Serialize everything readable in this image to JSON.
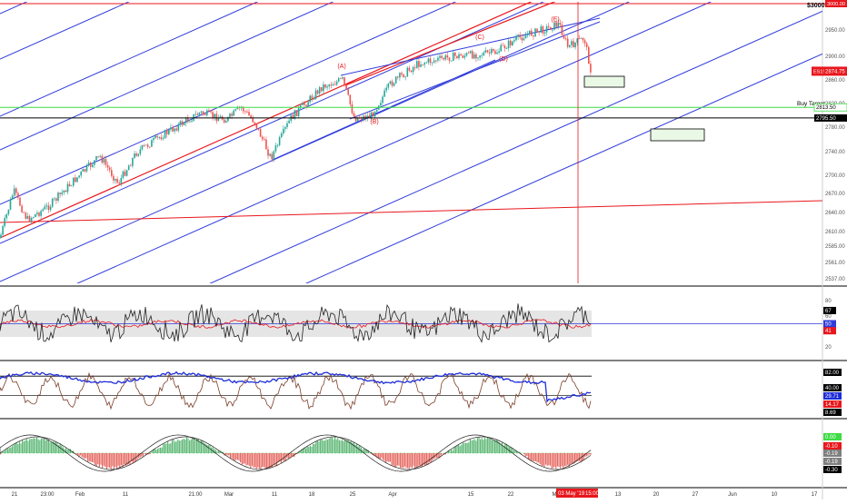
{
  "chart_data": {
    "type": "line",
    "colors": {
      "background": "#ffffff",
      "up_candle": "#26a69a",
      "down_candle": "#ef5350",
      "channel_blue": "#2f3bdb",
      "channel_red": "#e8171c",
      "support_green": "#3ddc44",
      "rsi_band": "#e5e5e5",
      "stoch_k": "#1d2cd8",
      "stoch_d": "#7b3f2a",
      "macd_up": "#3aa757",
      "macd_down": "#e0473f",
      "price_tag": "#e8171c"
    },
    "main_panel": {
      "corner_label": "$3000!",
      "y_ticks": [
        "2950.00",
        "2900.00",
        "2860.00",
        "2820.00",
        "2780.00",
        "2740.00",
        "2700.00",
        "2670.00",
        "2640.00",
        "2610.00",
        "2585.00",
        "2561.00",
        "2537.00"
      ],
      "y_tick_values": [
        2950,
        2900,
        2860,
        2820,
        2780,
        2740,
        2700,
        2670,
        2640,
        2610,
        2585,
        2561,
        2537
      ],
      "top_line_value": 3000,
      "buy_target_label": "Buy Target",
      "buy_target_value": 2813.5,
      "buy_target_text": "2813.50",
      "black_line_value": 2795.5,
      "black_line_text": "2795.50",
      "price_tag_symbol": "ES1!",
      "price_tag_value": 2874.75,
      "price_tag_text": "2874.75",
      "wave_labels": [
        {
          "text": "(A)",
          "value": 2880
        },
        {
          "text": "(B)",
          "value": 2786
        },
        {
          "text": "(C)",
          "value": 2933
        },
        {
          "text": "(D)",
          "value": 2892
        },
        {
          "text": "(E)",
          "value": 2966
        }
      ]
    },
    "rsi_panel": {
      "ticks": [
        "80",
        "60",
        "40",
        "20"
      ],
      "tick_values": [
        80,
        60,
        40,
        20
      ],
      "band": [
        67,
        33
      ],
      "mid_value": 50,
      "tags": [
        {
          "text": "67",
          "value": 67,
          "color": "#000000"
        },
        {
          "text": "50",
          "value": 50,
          "color": "#2f3bdb"
        },
        {
          "text": "41",
          "value": 41,
          "color": "#e8171c"
        }
      ]
    },
    "stoch_panel": {
      "tags": [
        {
          "text": "82.00",
          "value": 82,
          "color": "#000000"
        },
        {
          "text": "40.00",
          "value": 40,
          "color": "#000000"
        },
        {
          "text": "29.71",
          "value": 29.71,
          "color": "#1d2cd8"
        },
        {
          "text": "14.17",
          "value": 14.17,
          "color": "#e8171c"
        },
        {
          "text": "8.69",
          "value": 8.69,
          "color": "#000000"
        }
      ]
    },
    "macd_panel": {
      "tags": [
        {
          "text": "0.00",
          "value": 0.0,
          "color": "#3ddc44"
        },
        {
          "text": "-0.10",
          "value": -0.1,
          "color": "#e8171c"
        },
        {
          "text": "-0.19",
          "value": -0.19,
          "color": "#7f7f7f"
        },
        {
          "text": "-0.19",
          "value": -0.19,
          "color": "#7f7f7f"
        },
        {
          "text": "-0.30",
          "value": -0.3,
          "color": "#000000"
        }
      ]
    },
    "x_axis": {
      "ticks": [
        "21",
        "23:00",
        "Feb",
        "11",
        "21:00",
        "Mar",
        "11",
        "18",
        "25",
        "Apr",
        "15",
        "22",
        "M",
        "13",
        "20",
        "27",
        "Jun",
        "10",
        "17"
      ],
      "cursor_label": "03 May '19",
      "cursor_time": "15:00"
    }
  }
}
